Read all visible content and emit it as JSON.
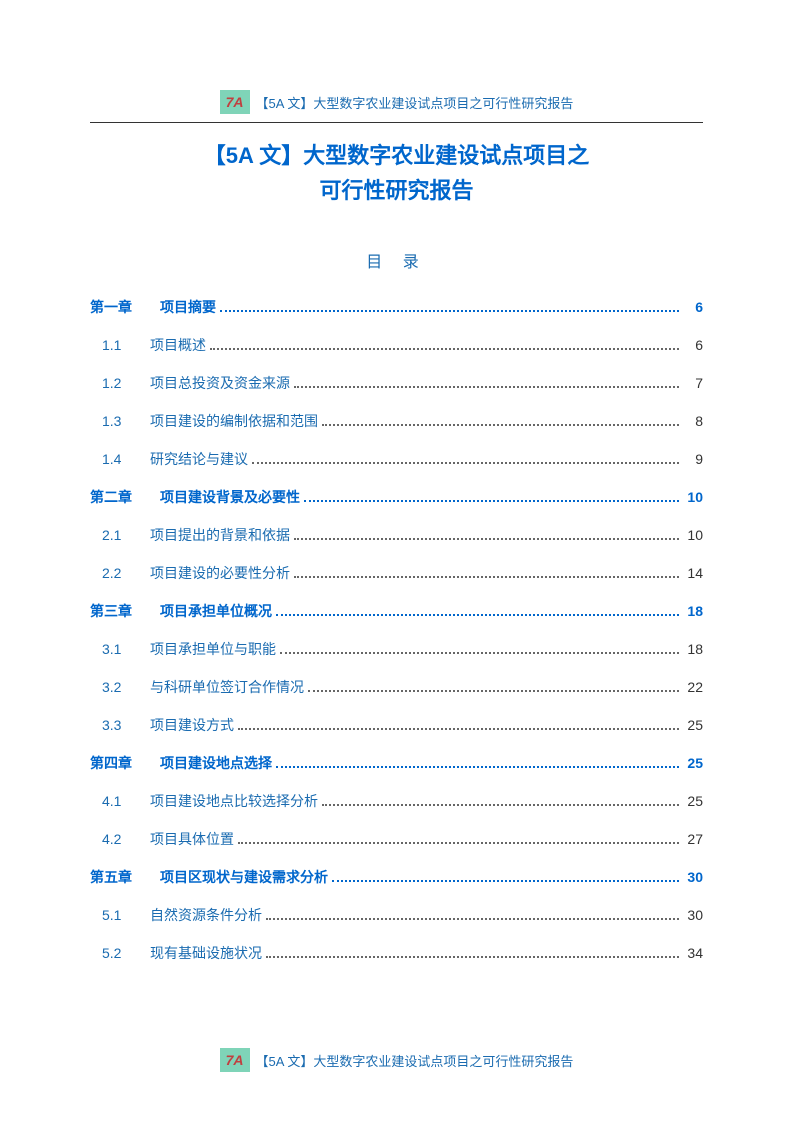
{
  "badge_text": "7A",
  "header_text": "【5A 文】大型数字农业建设试点项目之可行性研究报告",
  "title_line1": "【5A 文】大型数字农业建设试点项目之",
  "title_line2": "可行性研究报告",
  "toc_heading": "目  录",
  "toc": [
    {
      "type": "chapter",
      "num": "第一章",
      "label": "项目摘要",
      "page": "6"
    },
    {
      "type": "section",
      "num": "1.1",
      "label": "项目概述",
      "page": "6"
    },
    {
      "type": "section",
      "num": "1.2",
      "label": "项目总投资及资金来源",
      "page": "7"
    },
    {
      "type": "section",
      "num": "1.3",
      "label": "项目建设的编制依据和范围",
      "page": "8"
    },
    {
      "type": "section",
      "num": "1.4",
      "label": "研究结论与建议",
      "page": "9"
    },
    {
      "type": "chapter",
      "num": "第二章",
      "label": "项目建设背景及必要性",
      "page": "10"
    },
    {
      "type": "section",
      "num": "2.1",
      "label": "项目提出的背景和依据",
      "page": "10"
    },
    {
      "type": "section",
      "num": "2.2",
      "label": "项目建设的必要性分析",
      "page": "14"
    },
    {
      "type": "chapter",
      "num": "第三章",
      "label": "项目承担单位概况",
      "page": "18"
    },
    {
      "type": "section",
      "num": "3.1",
      "label": "项目承担单位与职能",
      "page": "18"
    },
    {
      "type": "section",
      "num": "3.2",
      "label": "与科研单位签订合作情况",
      "page": "22"
    },
    {
      "type": "section",
      "num": "3.3",
      "label": "项目建设方式",
      "page": "25"
    },
    {
      "type": "chapter",
      "num": "第四章",
      "label": "项目建设地点选择",
      "page": "25"
    },
    {
      "type": "section",
      "num": "4.1",
      "label": "项目建设地点比较选择分析",
      "page": "25"
    },
    {
      "type": "section",
      "num": "4.2",
      "label": "项目具体位置",
      "page": "27"
    },
    {
      "type": "chapter",
      "num": "第五章",
      "label": "项目区现状与建设需求分析",
      "page": "30"
    },
    {
      "type": "section",
      "num": "5.1",
      "label": "自然资源条件分析",
      "page": "30"
    },
    {
      "type": "section",
      "num": "5.2",
      "label": "现有基础设施状况",
      "page": "34"
    }
  ],
  "colors": {
    "primary_blue": "#0066cc",
    "text_blue": "#1a6bb0",
    "badge_bg": "#7fd4b8",
    "badge_text": "#c04040",
    "divider": "#333333",
    "background": "#ffffff"
  }
}
